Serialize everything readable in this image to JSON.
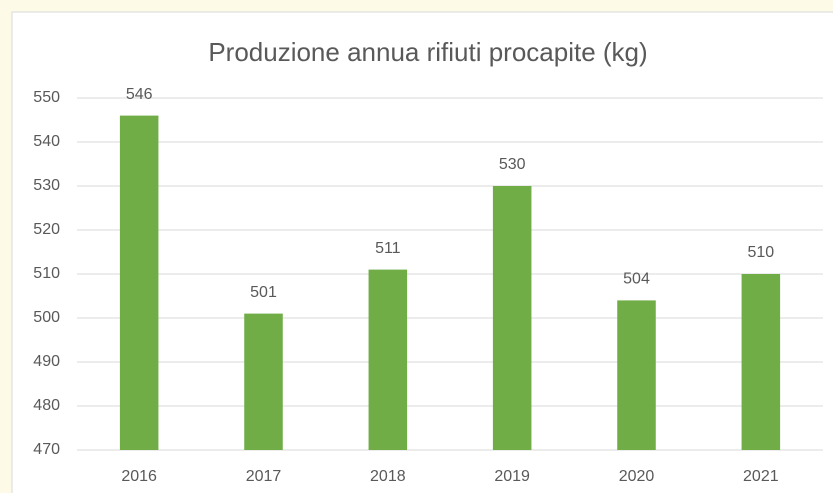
{
  "chart_data": {
    "type": "bar",
    "title": "Produzione annua rifiuti procapite (kg)",
    "categories": [
      "2016",
      "2017",
      "2018",
      "2019",
      "2020",
      "2021"
    ],
    "values": [
      546,
      501,
      511,
      530,
      504,
      510
    ],
    "color": "#70ad47",
    "ylim": [
      470,
      550
    ],
    "yticks": [
      470,
      480,
      490,
      500,
      510,
      520,
      530,
      540,
      550
    ],
    "grid": true
  }
}
